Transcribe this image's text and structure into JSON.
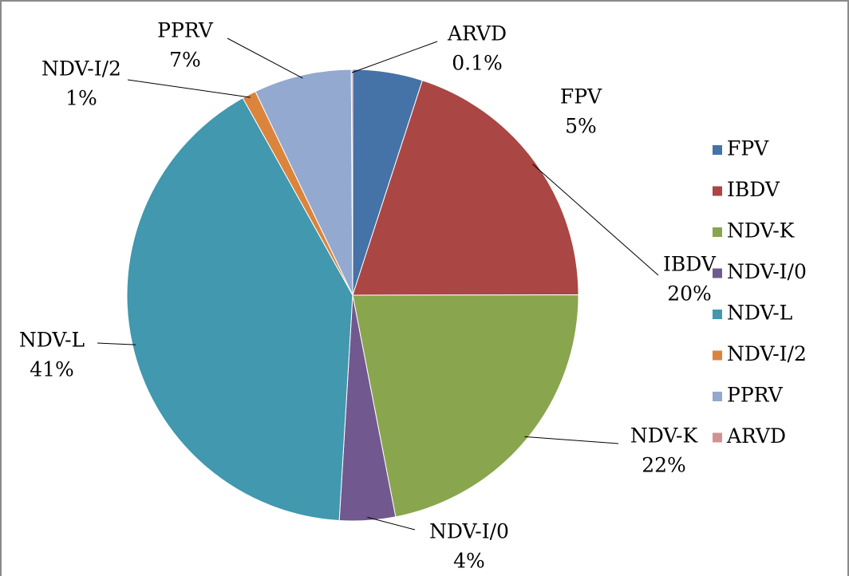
{
  "chart_data": {
    "type": "pie",
    "categories": [
      "FPV",
      "IBDV",
      "NDV-K",
      "NDV-I/0",
      "NDV-L",
      "NDV-I/2",
      "PPRV",
      "ARVD"
    ],
    "values": [
      5,
      20,
      22,
      4,
      41,
      1,
      7,
      0.1
    ],
    "value_labels": [
      "5%",
      "20%",
      "22%",
      "4%",
      "41%",
      "1%",
      "7%",
      "0.1%"
    ],
    "colors": [
      "#4572a7",
      "#aa4643",
      "#89a54e",
      "#71588f",
      "#4198af",
      "#db843d",
      "#93a9cf",
      "#d19392"
    ],
    "legend": "right"
  }
}
